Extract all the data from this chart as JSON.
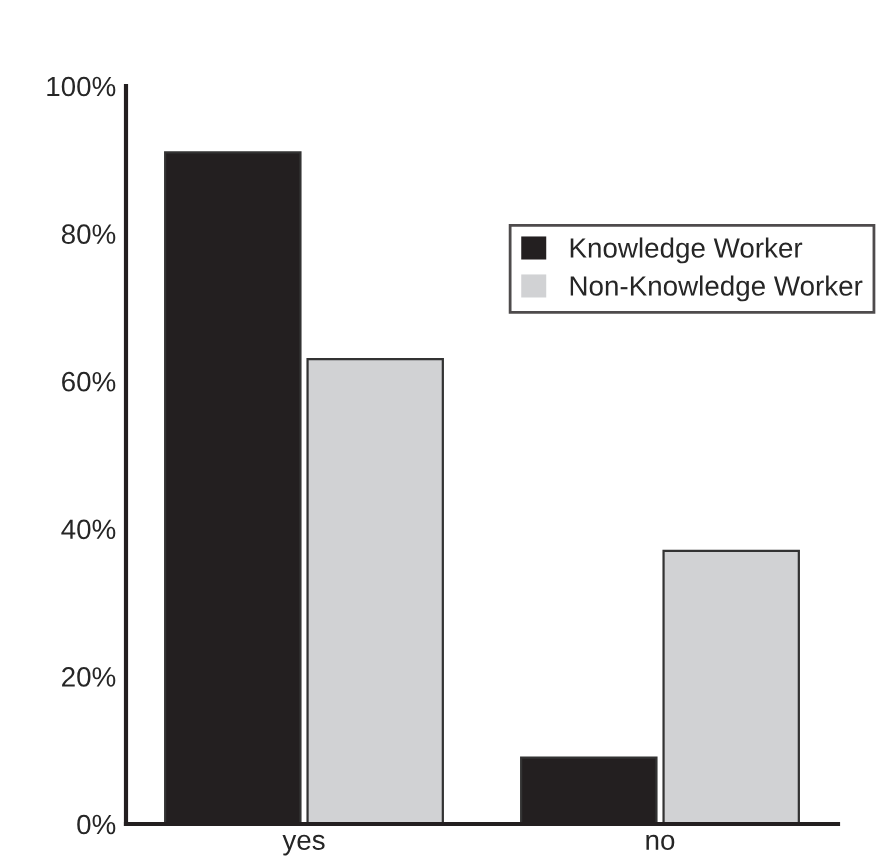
{
  "chart_data": {
    "type": "bar",
    "categories": [
      "yes",
      "no"
    ],
    "series": [
      {
        "name": "Knowledge Worker",
        "color": "#231f20",
        "values": [
          91,
          9
        ]
      },
      {
        "name": "Non-Knowledge Worker",
        "color": "#d1d2d4",
        "values": [
          63,
          37
        ]
      }
    ],
    "ylim": [
      0,
      100
    ],
    "yticks": [
      {
        "value": 0,
        "label": "0%"
      },
      {
        "value": 20,
        "label": "20%"
      },
      {
        "value": 40,
        "label": "40%"
      },
      {
        "value": 60,
        "label": "60%"
      },
      {
        "value": 80,
        "label": "80%"
      },
      {
        "value": 100,
        "label": "100%"
      }
    ],
    "legend": "top right",
    "grid": false
  }
}
